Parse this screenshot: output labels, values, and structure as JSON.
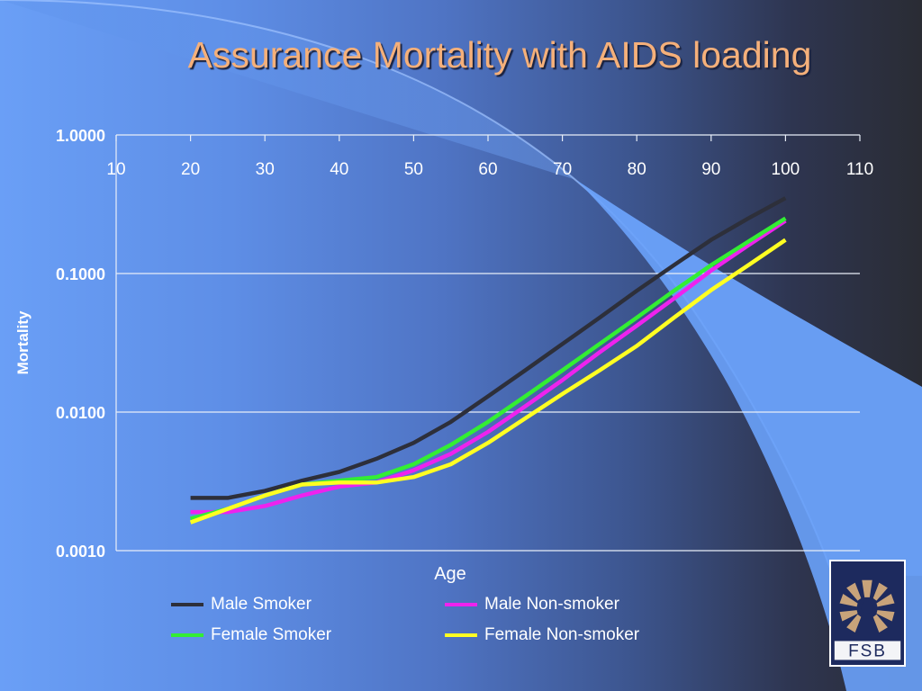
{
  "slide": {
    "title": "Assurance Mortality with AIDS loading",
    "logo_text": "FSB"
  },
  "colors": {
    "title": "#f5b07a",
    "grid": "#e8eef8",
    "text": "#ffffff"
  },
  "chart_data": {
    "type": "line",
    "title": "Assurance Mortality with AIDS loading",
    "xlabel": "Age",
    "ylabel": "Mortality",
    "xlim": [
      10,
      110
    ],
    "ylim": [
      0.001,
      1
    ],
    "y_scale": "log",
    "x_ticks": [
      10,
      20,
      30,
      40,
      50,
      60,
      70,
      80,
      90,
      100,
      110
    ],
    "x_tick_labels": [
      "10",
      "20",
      "30",
      "40",
      "50",
      "60",
      "70",
      "80",
      "90",
      "100",
      "110"
    ],
    "y_ticks": [
      1.0,
      0.1,
      0.01,
      0.001
    ],
    "y_tick_labels": [
      "1.0000",
      "0.1000",
      "0.0100",
      "0.0010"
    ],
    "grid": "horizontal",
    "legend_position": "bottom",
    "x": [
      20,
      25,
      30,
      35,
      40,
      45,
      50,
      55,
      60,
      65,
      70,
      75,
      80,
      85,
      90,
      95,
      100
    ],
    "series": [
      {
        "name": "Male Smoker",
        "color": "#2d2f3a",
        "values": [
          0.0024,
          0.0024,
          0.0027,
          0.0032,
          0.0037,
          0.0046,
          0.006,
          0.0085,
          0.013,
          0.02,
          0.031,
          0.048,
          0.075,
          0.115,
          0.175,
          0.25,
          0.35
        ]
      },
      {
        "name": "Male Non-smoker",
        "color": "#ee22ee",
        "values": [
          0.0019,
          0.0019,
          0.0021,
          0.0025,
          0.0029,
          0.0031,
          0.0038,
          0.005,
          0.0072,
          0.011,
          0.017,
          0.027,
          0.042,
          0.066,
          0.105,
          0.16,
          0.24
        ]
      },
      {
        "name": "Female Smoker",
        "color": "#33ee33",
        "values": [
          0.0017,
          0.002,
          0.0025,
          0.003,
          0.0032,
          0.0034,
          0.0042,
          0.0058,
          0.0085,
          0.013,
          0.02,
          0.031,
          0.048,
          0.075,
          0.115,
          0.17,
          0.25
        ]
      },
      {
        "name": "Female Non-smoker",
        "color": "#ffff22",
        "values": [
          0.0016,
          0.002,
          0.0025,
          0.003,
          0.0031,
          0.0031,
          0.0034,
          0.0042,
          0.006,
          0.009,
          0.0135,
          0.02,
          0.03,
          0.048,
          0.076,
          0.115,
          0.175
        ]
      }
    ]
  }
}
